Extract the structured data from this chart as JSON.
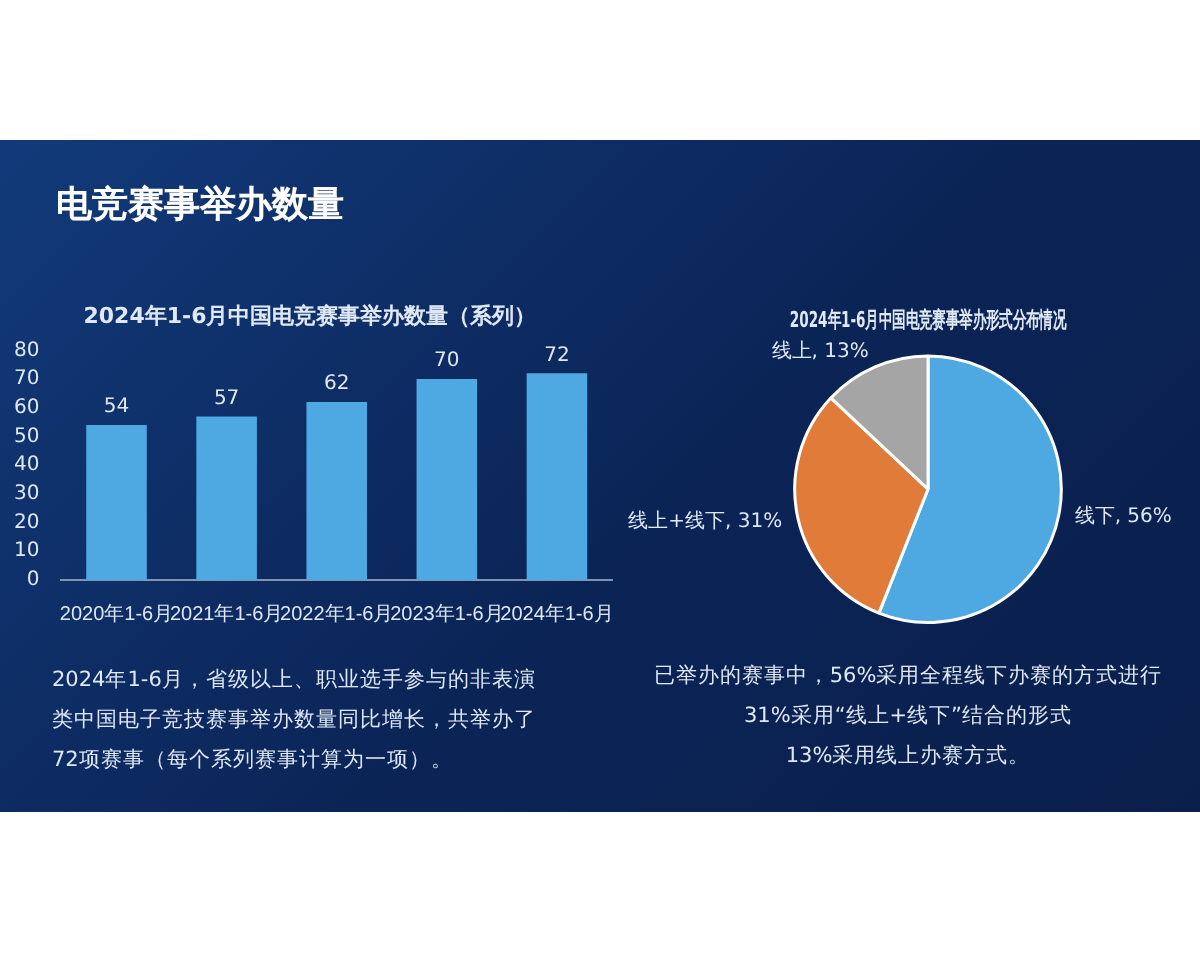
{
  "chart_data": [
    {
      "type": "bar",
      "title": "2024年1-6月中国电竞赛事举办数量（系列）",
      "categories": [
        "2020年1-6月",
        "2021年1-6月",
        "2022年1-6月",
        "2023年1-6月",
        "2024年1-6月"
      ],
      "values": [
        54,
        57,
        62,
        70,
        72
      ],
      "color": "#4ea8e2",
      "ylim": [
        0,
        80
      ],
      "yticks": [
        0,
        10,
        20,
        30,
        40,
        50,
        60,
        70,
        80
      ],
      "grid": false,
      "legend": false,
      "data_labels": true,
      "annotations": [
        "电竞赛事举办数量",
        "2024年1-6月，省级以上、职业选手参与的非表演类中国电子竞技赛事举办数量同比增长，共举办了72项赛事（每个系列赛事计算为一项）。"
      ]
    },
    {
      "type": "pie",
      "title": "2024年1-6月中国电竞赛事举办形式分布情况",
      "categories": [
        "线下",
        "线上+线下",
        "线上"
      ],
      "values": [
        56,
        31,
        13
      ],
      "colors": [
        "#4ea8e2",
        "#e07b39",
        "#a5a5a5"
      ],
      "legend": false,
      "value_labels": [
        "56%",
        "31%",
        "13%"
      ],
      "annotations": [
        "已举办的赛事中，56%采用全程线下办赛的方式进行",
        "31%采用“线上+线下”结合的形式",
        "13%采用线上办赛方式。"
      ]
    }
  ]
}
